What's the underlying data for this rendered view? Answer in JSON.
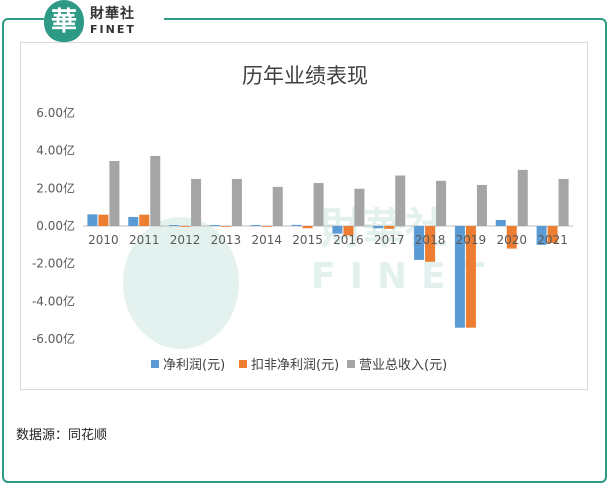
{
  "header": {
    "logo_text_cn": "財華社",
    "logo_text_en": "FINET",
    "logo_glyph": "華"
  },
  "footer": {
    "source_text": "数据源：同花顺"
  },
  "chart_data": {
    "type": "bar",
    "title": "历年业绩表现",
    "categories": [
      "2010",
      "2011",
      "2012",
      "2013",
      "2014",
      "2015",
      "2016",
      "2017",
      "2018",
      "2019",
      "2020",
      "2021"
    ],
    "series": [
      {
        "name": "净利润(元)",
        "color": "#5b9bd5",
        "values": [
          0.62,
          0.48,
          0.05,
          0.05,
          0.05,
          0.06,
          -0.4,
          -0.12,
          -1.8,
          -5.4,
          0.32,
          -1.0
        ]
      },
      {
        "name": "扣非净利润(元)",
        "color": "#ed7d31",
        "values": [
          0.6,
          0.6,
          -0.03,
          -0.02,
          -0.02,
          -0.12,
          -0.5,
          -0.15,
          -1.9,
          -5.4,
          -1.2,
          -0.9
        ]
      },
      {
        "name": "营业总收入(元)",
        "color": "#a5a5a5",
        "values": [
          3.45,
          3.72,
          2.5,
          2.5,
          2.08,
          2.28,
          1.98,
          2.68,
          2.4,
          2.18,
          2.98,
          2.5
        ]
      }
    ],
    "yticks": [
      "6.00亿",
      "4.00亿",
      "2.00亿",
      "0.00亿",
      "-2.00亿",
      "-4.00亿",
      "-6.00亿"
    ],
    "ytick_values": [
      6,
      4,
      2,
      0,
      -2,
      -4,
      -6
    ],
    "ylim": [
      -6,
      6
    ],
    "unit": "亿",
    "xlabel": "",
    "ylabel": "",
    "legend_position": "bottom"
  }
}
